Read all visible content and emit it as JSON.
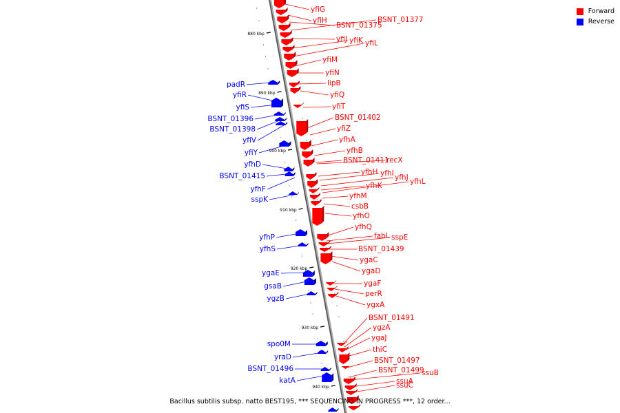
{
  "legend": {
    "forward": {
      "label": "Forward",
      "color": "#ff0000"
    },
    "reverse": {
      "label": "Reverse",
      "color": "#0000ff"
    }
  },
  "caption": "Bacillus subtilis subsp. natto BEST195, *** SEQUENCING IN PROGRESS ***, 12 order...",
  "scale_labels": [
    "880 kbp",
    "890 kbp",
    "900 kbp",
    "910 kbp",
    "920 kbp",
    "930 kbp",
    "940 kbp"
  ],
  "forward_genes": [
    "yfiG",
    "yfiH",
    "BSNT_01375",
    "BSNT_01377",
    "yfiJ",
    "yfiK",
    "yfiL",
    "yfiM",
    "yfiN",
    "lipB",
    "yfiQ",
    "yfiT",
    "BSNT_01402",
    "yfiZ",
    "yfhA",
    "yfhB",
    "BSNT_01411",
    "recX",
    "yfhH",
    "yfhI",
    "yfhJ",
    "yfhK",
    "yfhL",
    "yfhM",
    "csbB",
    "yfhO",
    "yfhQ",
    "fabL",
    "sspE",
    "BSNT_01439",
    "ygaC",
    "ygaD",
    "ygaF",
    "perR",
    "ygxA",
    "BSNT_01491",
    "ygzA",
    "ygaJ",
    "thiC",
    "BSNT_01497",
    "BSNT_01499",
    "ssuB",
    "ssuA",
    "ssuC"
  ],
  "reverse_genes": [
    "padR",
    "yfiR",
    "yfiS",
    "BSNT_01396",
    "BSNT_01398",
    "yfiV",
    "yfiY",
    "yfhD",
    "BSNT_01415",
    "yfhF",
    "sspK",
    "yfhP",
    "yfhS",
    "ygaE",
    "gsaB",
    "ygzB",
    "spo0M",
    "yraD",
    "BSNT_01496",
    "katA"
  ]
}
